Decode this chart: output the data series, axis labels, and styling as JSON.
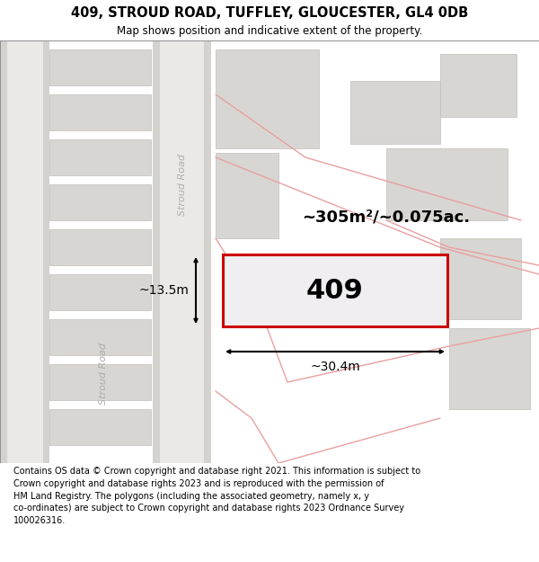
{
  "title_line1": "409, STROUD ROAD, TUFFLEY, GLOUCESTER, GL4 0DB",
  "title_line2": "Map shows position and indicative extent of the property.",
  "footer_text": "Contains OS data © Crown copyright and database right 2021. This information is subject to Crown copyright and database rights 2023 and is reproduced with the permission of HM Land Registry. The polygons (including the associated geometry, namely x, y co-ordinates) are subject to Crown copyright and database rights 2023 Ordnance Survey 100026316.",
  "map_bg": "#f0eeeb",
  "road_light": "#ebe9e6",
  "road_dark": "#d4d2ce",
  "building_fill": "#d8d6d2",
  "building_edge": "#c0beba",
  "pink": "#e8a0a0",
  "highlight_fill": "#f0eef0",
  "highlight_edge": "#cc0000",
  "road_text_color": "#b0aead",
  "area_label": "~305m²/~0.075ac.",
  "width_label": "~30.4m",
  "height_label": "~13.5m",
  "plot_number": "409",
  "road_label_upper": "Stroud Road",
  "road_label_lower": "Stroud Road"
}
